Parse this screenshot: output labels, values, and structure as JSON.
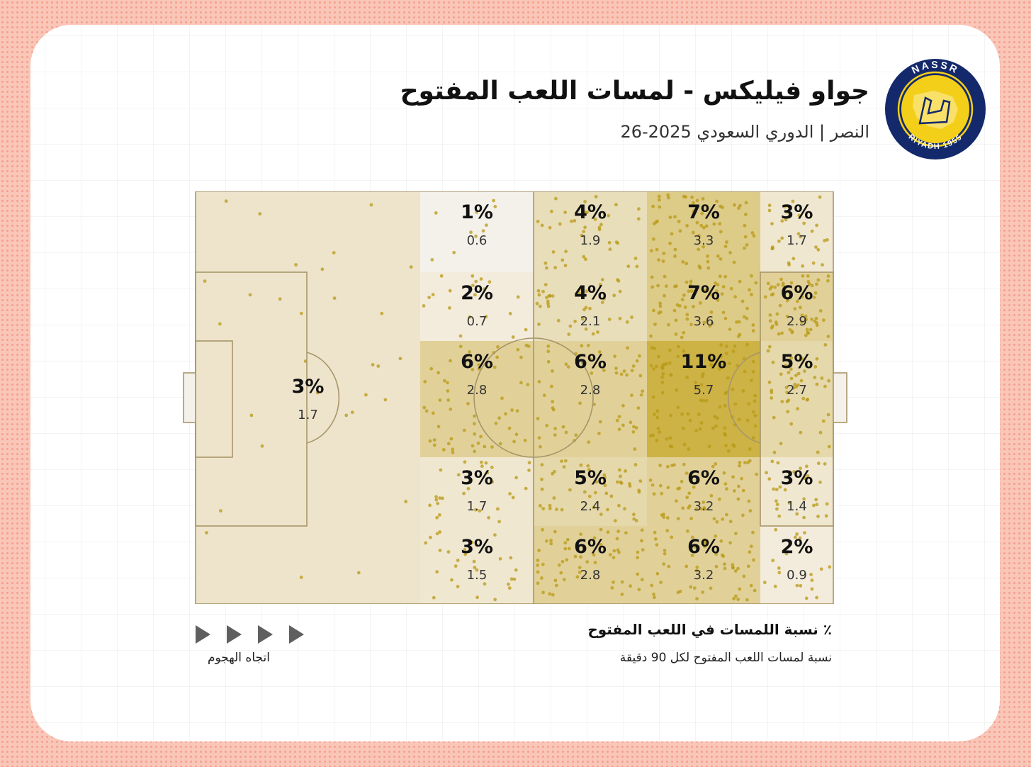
{
  "header": {
    "title": "جواو فيليكس - لمسات اللعب المفتوح",
    "subtitle": "النصر | الدوري السعودي 2025-26"
  },
  "logo": {
    "top_text": "NASSR",
    "bottom_text": "RIYADH 1955",
    "colors": {
      "ring": "#14296b",
      "fill": "#f4cf1a",
      "text": "#ffffff"
    }
  },
  "legend": {
    "title": "٪ نسبة اللمسات في اللعب المفتوح",
    "subtitle": "نسبة لمسات اللعب المفتوح لكل 90 دقيقة",
    "direction_label": "اتجاه الهجوم",
    "arrow_icon": "play-arrow-icon"
  },
  "colors": {
    "pitch_base": "#ede4cb",
    "zone_strong": "#cdb245",
    "dot": "#b89a16",
    "line": "#a8966a"
  },
  "chart_data": {
    "type": "heatmap",
    "title": "جواو فيليكس - لمسات اللعب المفتوح",
    "attack_direction": "left-to-right",
    "zones": [
      {
        "row": 0,
        "col": 1,
        "pct": "1%",
        "p90": "0.6",
        "share": 1
      },
      {
        "row": 0,
        "col": 2,
        "pct": "4%",
        "p90": "1.9",
        "share": 4
      },
      {
        "row": 0,
        "col": 3,
        "pct": "7%",
        "p90": "3.3",
        "share": 7
      },
      {
        "row": 0,
        "col": 4,
        "pct": "3%",
        "p90": "1.7",
        "share": 3
      },
      {
        "row": 1,
        "col": 1,
        "pct": "2%",
        "p90": "0.7",
        "share": 2
      },
      {
        "row": 1,
        "col": 2,
        "pct": "4%",
        "p90": "2.1",
        "share": 4
      },
      {
        "row": 1,
        "col": 3,
        "pct": "7%",
        "p90": "3.6",
        "share": 7
      },
      {
        "row": 1,
        "col": 4,
        "pct": "6%",
        "p90": "2.9",
        "share": 6
      },
      {
        "row": 2,
        "col": 0,
        "pct": "3%",
        "p90": "1.7",
        "share": 3
      },
      {
        "row": 2,
        "col": 1,
        "pct": "6%",
        "p90": "2.8",
        "share": 6
      },
      {
        "row": 2,
        "col": 2,
        "pct": "6%",
        "p90": "2.8",
        "share": 6
      },
      {
        "row": 2,
        "col": 3,
        "pct": "11%",
        "p90": "5.7",
        "share": 11
      },
      {
        "row": 2,
        "col": 4,
        "pct": "5%",
        "p90": "2.7",
        "share": 5
      },
      {
        "row": 3,
        "col": 1,
        "pct": "3%",
        "p90": "1.7",
        "share": 3
      },
      {
        "row": 3,
        "col": 2,
        "pct": "5%",
        "p90": "2.4",
        "share": 5
      },
      {
        "row": 3,
        "col": 3,
        "pct": "6%",
        "p90": "3.2",
        "share": 6
      },
      {
        "row": 3,
        "col": 4,
        "pct": "3%",
        "p90": "1.4",
        "share": 3
      },
      {
        "row": 4,
        "col": 1,
        "pct": "3%",
        "p90": "1.5",
        "share": 3
      },
      {
        "row": 4,
        "col": 2,
        "pct": "6%",
        "p90": "2.8",
        "share": 6
      },
      {
        "row": 4,
        "col": 3,
        "pct": "6%",
        "p90": "3.2",
        "share": 6
      },
      {
        "row": 4,
        "col": 4,
        "pct": "2%",
        "p90": "0.9",
        "share": 2
      }
    ]
  }
}
